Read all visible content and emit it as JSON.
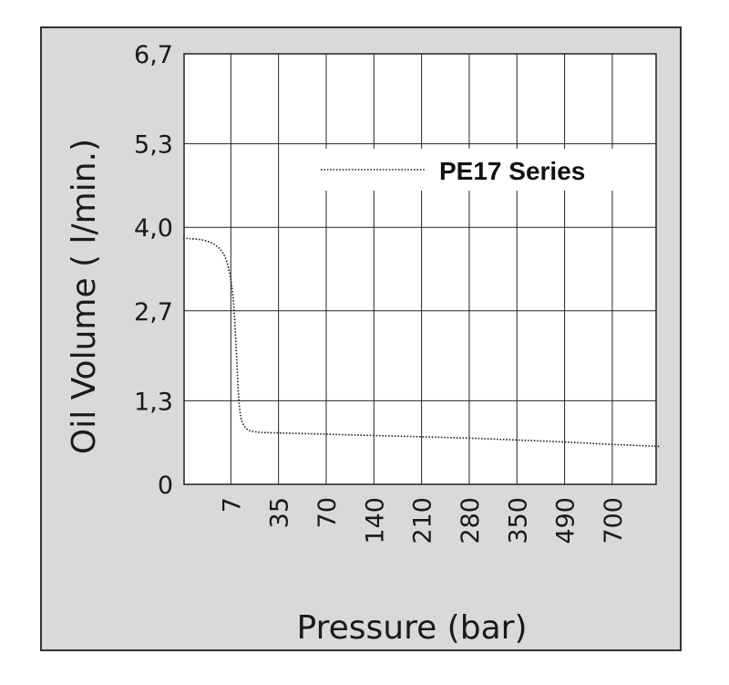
{
  "chart_data": {
    "type": "line",
    "title": "",
    "xlabel": "Pressure (bar)",
    "ylabel": "Oil Volume ( l/min.)",
    "x_categories": [
      "7",
      "35",
      "70",
      "140",
      "210",
      "280",
      "350",
      "490",
      "700"
    ],
    "y_ticks": [
      "0",
      "1,3",
      "2,7",
      "4,0",
      "5,3",
      "6,7"
    ],
    "y_tick_values": [
      0,
      1.3,
      2.7,
      4.0,
      5.3,
      6.7
    ],
    "ylim": [
      0,
      6.7
    ],
    "grid": true,
    "legend_position": "top-right",
    "series": [
      {
        "name": "PE17 Series",
        "style": "dotted",
        "color": "#222222",
        "points": [
          {
            "x_index": -1.0,
            "y": 3.83
          },
          {
            "x_index": -0.55,
            "y": 3.81
          },
          {
            "x_index": -0.25,
            "y": 3.7
          },
          {
            "x_index": -0.08,
            "y": 3.5
          },
          {
            "x_index": 0.05,
            "y": 3.0
          },
          {
            "x_index": 0.12,
            "y": 2.0
          },
          {
            "x_index": 0.18,
            "y": 1.07
          },
          {
            "x_index": 0.3,
            "y": 0.86
          },
          {
            "x_index": 0.5,
            "y": 0.81
          },
          {
            "x_index": 1.0,
            "y": 0.8
          },
          {
            "x_index": 2.0,
            "y": 0.78
          },
          {
            "x_index": 3.0,
            "y": 0.76
          },
          {
            "x_index": 4.0,
            "y": 0.74
          },
          {
            "x_index": 5.0,
            "y": 0.72
          },
          {
            "x_index": 6.0,
            "y": 0.69
          },
          {
            "x_index": 7.0,
            "y": 0.66
          },
          {
            "x_index": 8.0,
            "y": 0.62
          },
          {
            "x_index": 9.0,
            "y": 0.59
          }
        ]
      }
    ]
  }
}
